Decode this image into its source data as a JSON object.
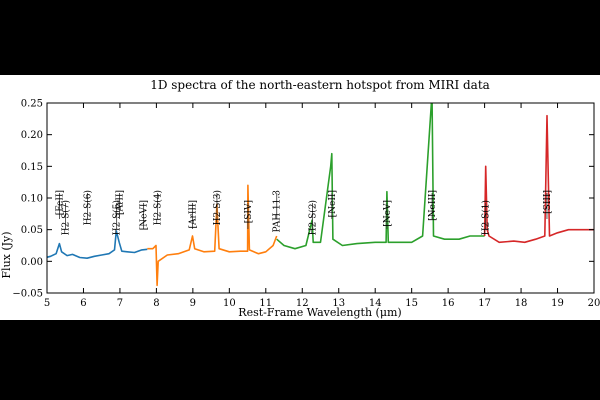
{
  "chart_data": {
    "type": "line",
    "title": "1D spectra of the north-eastern hotspot from MIRI data",
    "xlabel": "Rest-Frame Wavelength (μm)",
    "ylabel": "Flux (Jy)",
    "xlim": [
      5,
      20
    ],
    "ylim": [
      -0.05,
      0.25
    ],
    "xticks": [
      5,
      6,
      7,
      8,
      9,
      10,
      11,
      12,
      13,
      14,
      15,
      16,
      17,
      18,
      19,
      20
    ],
    "yticks": [
      -0.05,
      0.0,
      0.05,
      0.1,
      0.15,
      0.2,
      0.25
    ],
    "ytick_labels": [
      "−0.05",
      "0.00",
      "0.05",
      "0.10",
      "0.15",
      "0.20",
      "0.25"
    ],
    "grid": false,
    "legend": "none",
    "series": [
      {
        "color": "#1f77b4",
        "x": [
          4.9,
          5.1,
          5.25,
          5.34,
          5.4,
          5.55,
          5.7,
          5.9,
          6.1,
          6.3,
          6.5,
          6.7,
          6.85,
          6.9,
          6.98,
          7.05,
          7.2,
          7.4,
          7.6,
          7.75
        ],
        "y": [
          0.005,
          0.008,
          0.012,
          0.028,
          0.015,
          0.009,
          0.011,
          0.006,
          0.005,
          0.008,
          0.01,
          0.012,
          0.018,
          0.048,
          0.03,
          0.016,
          0.015,
          0.014,
          0.018,
          0.019
        ]
      },
      {
        "color": "#ff7f0e",
        "x": [
          7.75,
          7.9,
          7.99,
          8.02,
          8.05,
          8.3,
          8.6,
          8.9,
          8.99,
          9.05,
          9.3,
          9.6,
          9.66,
          9.72,
          10.0,
          10.3,
          10.5,
          10.51,
          10.55,
          10.8,
          11.0,
          11.2,
          11.3
        ],
        "y": [
          0.02,
          0.02,
          0.025,
          -0.038,
          0.0,
          0.01,
          0.012,
          0.018,
          0.04,
          0.02,
          0.015,
          0.016,
          0.09,
          0.02,
          0.015,
          0.016,
          0.016,
          0.12,
          0.018,
          0.012,
          0.015,
          0.025,
          0.04
        ]
      },
      {
        "color": "#2ca02c",
        "x": [
          11.3,
          11.5,
          11.8,
          12.1,
          12.27,
          12.3,
          12.5,
          12.78,
          12.81,
          12.84,
          13.1,
          13.5,
          14.0,
          14.3,
          14.32,
          14.36,
          14.6,
          15.0,
          15.3,
          15.54,
          15.56,
          15.6,
          15.9,
          16.3,
          16.6,
          16.9,
          17.0
        ],
        "y": [
          0.035,
          0.025,
          0.02,
          0.025,
          0.065,
          0.03,
          0.03,
          0.15,
          0.17,
          0.035,
          0.025,
          0.028,
          0.03,
          0.03,
          0.11,
          0.03,
          0.03,
          0.03,
          0.04,
          0.25,
          0.25,
          0.04,
          0.035,
          0.035,
          0.04,
          0.04,
          0.04
        ]
      },
      {
        "color": "#d62728",
        "x": [
          17.0,
          17.03,
          17.07,
          17.12,
          17.4,
          17.8,
          18.1,
          18.4,
          18.65,
          18.71,
          18.78,
          19.0,
          19.3,
          19.6,
          19.9,
          20.1
        ],
        "y": [
          0.04,
          0.15,
          0.05,
          0.04,
          0.03,
          0.032,
          0.03,
          0.035,
          0.04,
          0.23,
          0.04,
          0.045,
          0.05,
          0.05,
          0.05,
          0.05
        ]
      }
    ],
    "annotations": [
      {
        "label": "[FeII]",
        "x": 5.34
      },
      {
        "label": "H2 S(7)",
        "x": 5.51
      },
      {
        "label": "H2 S(6)",
        "x": 6.11
      },
      {
        "label": "H2 S(5)",
        "x": 6.91
      },
      {
        "label": "[ArII]",
        "x": 6.99
      },
      {
        "label": "[NeVI]",
        "x": 7.65
      },
      {
        "label": "H2 S(4)",
        "x": 8.03
      },
      {
        "label": "[ArIII]",
        "x": 8.99
      },
      {
        "label": "H2 S(3)",
        "x": 9.66
      },
      {
        "label": "[SIV]",
        "x": 10.51
      },
      {
        "label": "PAH 11.3",
        "x": 11.3
      },
      {
        "label": "H2 S(2)",
        "x": 12.28
      },
      {
        "label": "[NeII]",
        "x": 12.81
      },
      {
        "label": "[NeV]",
        "x": 14.32
      },
      {
        "label": "[NeIII]",
        "x": 15.56
      },
      {
        "label": "H2 S(1)",
        "x": 17.03
      },
      {
        "label": "[SIII]",
        "x": 18.71
      }
    ]
  }
}
